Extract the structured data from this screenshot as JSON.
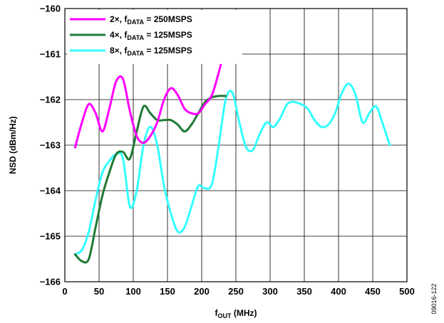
{
  "chart_data": {
    "type": "line",
    "xlabel": {
      "main": "f",
      "sub": "OUT",
      "rest": " (MHz)"
    },
    "ylabel": "NSD (dBm/Hz)",
    "xlim": [
      0,
      500
    ],
    "ylim": [
      -166,
      -160
    ],
    "x_ticks": [
      "0",
      "50",
      "100",
      "150",
      "200",
      "250",
      "300",
      "350",
      "400",
      "450",
      "500"
    ],
    "y_ticks": [
      "−160",
      "−161",
      "−162",
      "−163",
      "−164",
      "−165",
      "−166"
    ],
    "grid": true,
    "legend_position": "top-left",
    "series": [
      {
        "name_main": "2×, f",
        "name_sub": "DATA",
        "name_rest": " = 250MSPS",
        "color": "#ff00ff",
        "x": [
          15,
          25,
          35,
          45,
          55,
          65,
          75,
          85,
          95,
          105,
          115,
          125,
          135,
          145,
          155,
          165,
          175,
          185,
          195,
          205,
          215,
          225,
          235
        ],
        "y": [
          -163.05,
          -162.5,
          -162.1,
          -162.3,
          -162.7,
          -162.2,
          -161.6,
          -161.55,
          -162.25,
          -162.8,
          -162.95,
          -162.8,
          -162.5,
          -162.0,
          -161.75,
          -161.9,
          -162.2,
          -162.3,
          -162.3,
          -162.1,
          -161.9,
          -161.4,
          -160.8
        ]
      },
      {
        "name_main": "4×, f",
        "name_sub": "DATA",
        "name_rest": " = 125MSPS",
        "color": "#1e7a34",
        "x": [
          15,
          25,
          35,
          45,
          55,
          65,
          75,
          85,
          95,
          105,
          115,
          125,
          135,
          145,
          155,
          165,
          175,
          185,
          195,
          205,
          215,
          225,
          235
        ],
        "y": [
          -165.4,
          -165.55,
          -165.5,
          -164.8,
          -164.1,
          -163.6,
          -163.2,
          -163.15,
          -163.3,
          -162.7,
          -162.15,
          -162.3,
          -162.45,
          -162.45,
          -162.45,
          -162.55,
          -162.7,
          -162.55,
          -162.3,
          -162.05,
          -161.95,
          -161.92,
          -161.92
        ]
      },
      {
        "name_main": "8×, f",
        "name_sub": "DATA",
        "name_rest": " = 125MSPS",
        "color": "#33ffff",
        "x": [
          15,
          25,
          35,
          45,
          55,
          65,
          75,
          85,
          95,
          105,
          115,
          125,
          135,
          145,
          155,
          165,
          175,
          185,
          195,
          205,
          215,
          225,
          235,
          245,
          255,
          265,
          275,
          285,
          295,
          305,
          315,
          325,
          335,
          345,
          355,
          365,
          375,
          385,
          395,
          405,
          415,
          425,
          435,
          445,
          455,
          465,
          475
        ],
        "y": [
          -165.4,
          -165.3,
          -164.9,
          -164.2,
          -163.6,
          -163.35,
          -163.2,
          -163.3,
          -164.35,
          -164.0,
          -163.0,
          -162.6,
          -163.0,
          -163.9,
          -164.5,
          -164.9,
          -164.8,
          -164.35,
          -163.9,
          -163.95,
          -163.85,
          -163.0,
          -162.0,
          -161.85,
          -162.5,
          -163.05,
          -163.1,
          -162.75,
          -162.5,
          -162.6,
          -162.4,
          -162.1,
          -162.05,
          -162.1,
          -162.2,
          -162.45,
          -162.6,
          -162.55,
          -162.3,
          -161.85,
          -161.65,
          -161.9,
          -162.5,
          -162.3,
          -162.15,
          -162.55,
          -163.0
        ]
      }
    ]
  },
  "figure_id": "09016-122"
}
